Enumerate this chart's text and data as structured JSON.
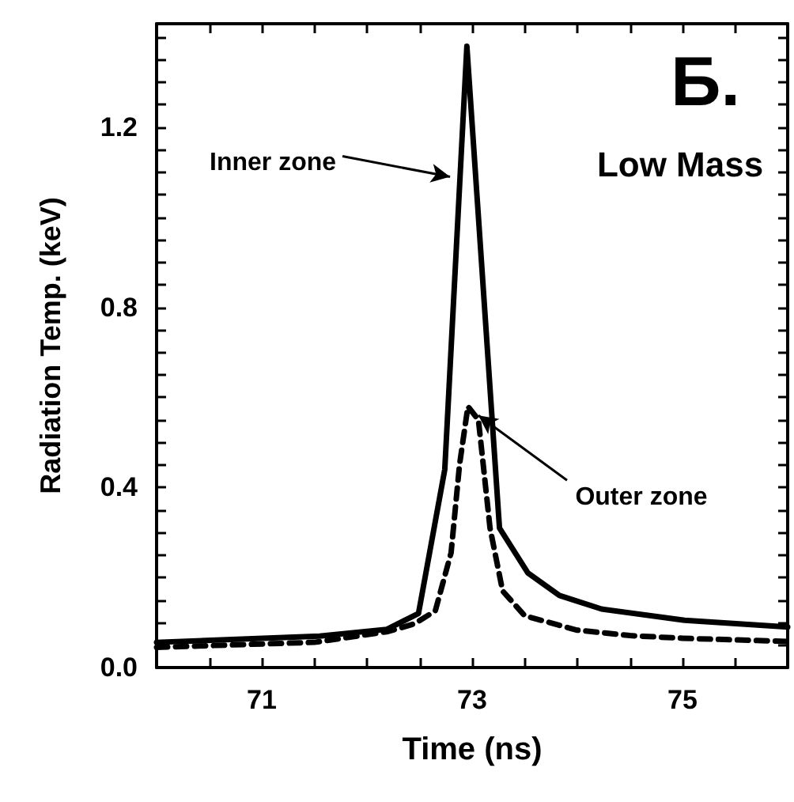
{
  "chart_data": {
    "type": "line",
    "xlabel": "Time (ns)",
    "ylabel": "Radiation Temp. (keV)",
    "xlim": [
      70,
      76
    ],
    "ylim": [
      0,
      1.43
    ],
    "xticks": [
      {
        "value": 70.5,
        "label": null
      },
      {
        "value": 71,
        "label": "71"
      },
      {
        "value": 71.5,
        "label": null
      },
      {
        "value": 72,
        "label": null
      },
      {
        "value": 72.5,
        "label": null
      },
      {
        "value": 73,
        "label": "73"
      },
      {
        "value": 73.5,
        "label": null
      },
      {
        "value": 74,
        "label": null
      },
      {
        "value": 74.5,
        "label": null
      },
      {
        "value": 75,
        "label": "75"
      },
      {
        "value": 75.5,
        "label": null
      }
    ],
    "yticks": [
      {
        "value": 0,
        "label": "0.0"
      },
      {
        "value": 0.05,
        "label": null
      },
      {
        "value": 0.1,
        "label": null
      },
      {
        "value": 0.15,
        "label": null
      },
      {
        "value": 0.2,
        "label": null
      },
      {
        "value": 0.25,
        "label": null
      },
      {
        "value": 0.3,
        "label": null
      },
      {
        "value": 0.35,
        "label": null
      },
      {
        "value": 0.4,
        "label": "0.4"
      },
      {
        "value": 0.45,
        "label": null
      },
      {
        "value": 0.5,
        "label": null
      },
      {
        "value": 0.55,
        "label": null
      },
      {
        "value": 0.6,
        "label": null
      },
      {
        "value": 0.65,
        "label": null
      },
      {
        "value": 0.7,
        "label": null
      },
      {
        "value": 0.75,
        "label": null
      },
      {
        "value": 0.8,
        "label": "0.8"
      },
      {
        "value": 0.85,
        "label": null
      },
      {
        "value": 0.9,
        "label": null
      },
      {
        "value": 0.95,
        "label": null
      },
      {
        "value": 1.0,
        "label": null
      },
      {
        "value": 1.05,
        "label": null
      },
      {
        "value": 1.1,
        "label": null
      },
      {
        "value": 1.15,
        "label": null
      },
      {
        "value": 1.2,
        "label": "1.2"
      },
      {
        "value": 1.25,
        "label": null
      },
      {
        "value": 1.3,
        "label": null
      },
      {
        "value": 1.35,
        "label": null
      },
      {
        "value": 1.4,
        "label": null
      }
    ],
    "grid": false,
    "marker": "none",
    "series": [
      {
        "color": "#000000",
        "line_style": "solid",
        "x": [
          70,
          71.55,
          72.19,
          72.49,
          72.74,
          72.95,
          73.26,
          73.53,
          73.83,
          74.23,
          75.02,
          76
        ],
        "values": [
          0.056,
          0.07,
          0.085,
          0.12,
          0.44,
          1.38,
          0.31,
          0.21,
          0.16,
          0.13,
          0.105,
          0.09
        ]
      },
      {
        "color": "#000000",
        "line_style": "dashed",
        "x": [
          70,
          71.5,
          72.2,
          72.45,
          72.65,
          72.8,
          72.88,
          72.96,
          73.06,
          73.17,
          73.29,
          73.5,
          74,
          74.5,
          75,
          76
        ],
        "values": [
          0.045,
          0.056,
          0.08,
          0.097,
          0.126,
          0.255,
          0.45,
          0.58,
          0.55,
          0.31,
          0.17,
          0.115,
          0.083,
          0.071,
          0.065,
          0.058
        ]
      }
    ],
    "annotations": [
      {
        "text": "Inner zone",
        "x": 72.79,
        "y": 1.09
      },
      {
        "text": "Outer zone",
        "x": 73.06,
        "y": 0.56
      },
      "Б.",
      "Low Mass"
    ]
  }
}
